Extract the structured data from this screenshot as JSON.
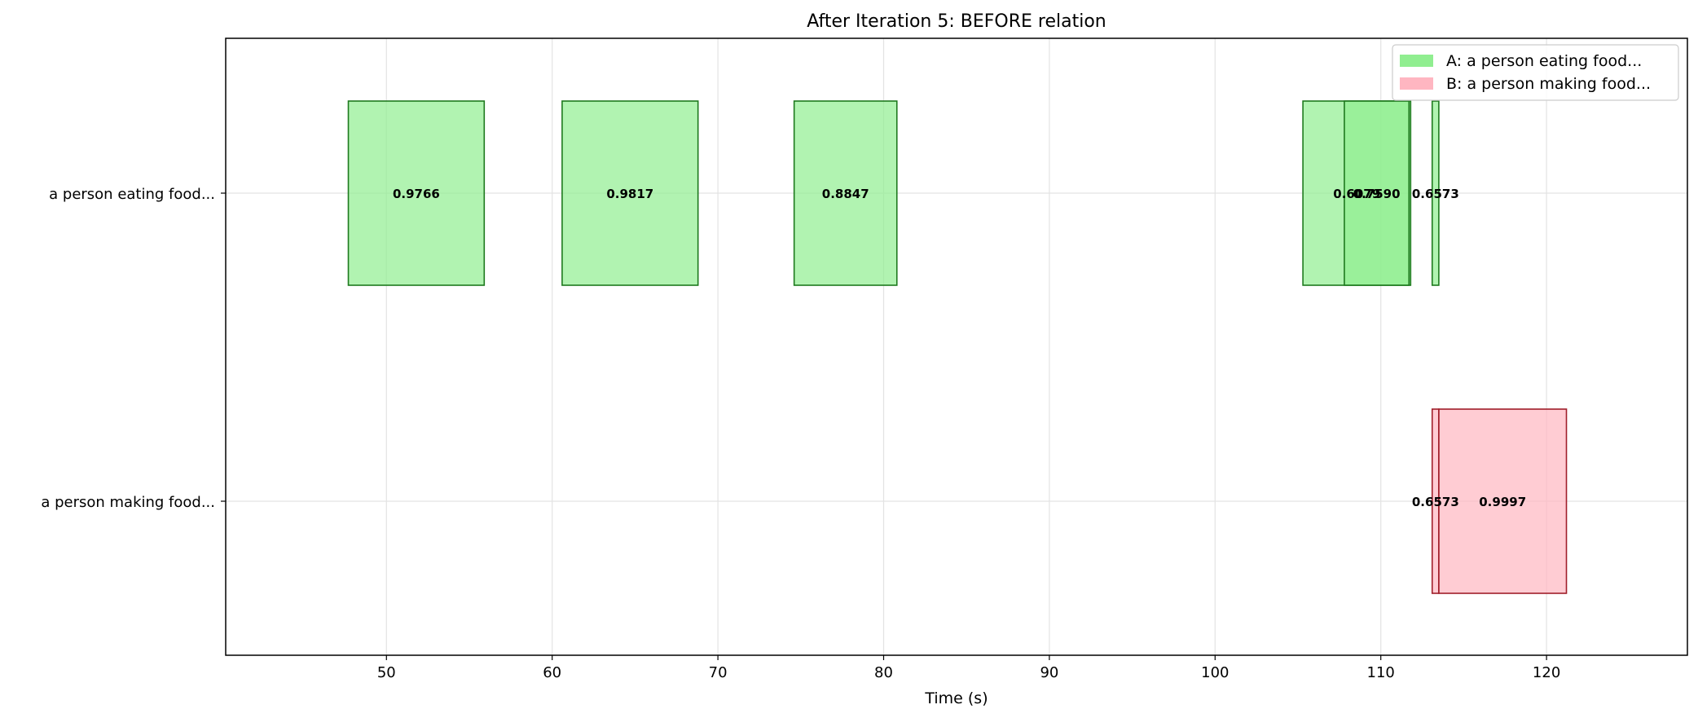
{
  "chart_data": {
    "type": "bar",
    "orientation": "horizontal-intervals",
    "title": "After Iteration 5: BEFORE relation",
    "xlabel": "Time (s)",
    "ylabel": "",
    "xlim": [
      40.3,
      128.5
    ],
    "xticks": [
      50,
      60,
      70,
      80,
      90,
      100,
      110,
      120
    ],
    "grid": true,
    "legend_position": "top-right",
    "categories": [
      "a person eating food...",
      "a person making food..."
    ],
    "series": [
      {
        "name": "A: a person eating food...",
        "color": "#90ee90",
        "edge_color": "#1e7a1e",
        "row": 0,
        "intervals": [
          {
            "start": 47.7,
            "end": 55.9,
            "score": "0.9766"
          },
          {
            "start": 60.6,
            "end": 68.8,
            "score": "0.9817"
          },
          {
            "start": 74.6,
            "end": 80.8,
            "score": "0.8847"
          },
          {
            "start": 105.3,
            "end": 111.8,
            "score": "0.6079"
          },
          {
            "start": 107.8,
            "end": 111.7,
            "score": "0.7590"
          },
          {
            "start": 113.1,
            "end": 113.5,
            "score": "0.6573"
          }
        ]
      },
      {
        "name": "B: a person making food...",
        "color": "#ffb6c1",
        "edge_color": "#a01e2a",
        "row": 1,
        "intervals": [
          {
            "start": 113.1,
            "end": 113.5,
            "score": "0.6573"
          },
          {
            "start": 113.5,
            "end": 121.2,
            "score": "0.9997"
          }
        ]
      }
    ]
  }
}
